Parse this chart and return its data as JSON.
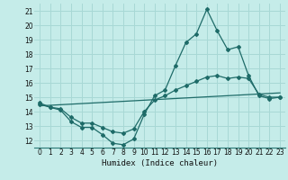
{
  "xlabel": "Humidex (Indice chaleur)",
  "background_color": "#c5ece9",
  "grid_color": "#a8d8d5",
  "line_color": "#1e6b68",
  "xlim": [
    -0.5,
    23.5
  ],
  "ylim": [
    11.5,
    21.5
  ],
  "yticks": [
    12,
    13,
    14,
    15,
    16,
    17,
    18,
    19,
    20,
    21
  ],
  "xticks": [
    0,
    1,
    2,
    3,
    4,
    5,
    6,
    7,
    8,
    9,
    10,
    11,
    12,
    13,
    14,
    15,
    16,
    17,
    18,
    19,
    20,
    21,
    22,
    23
  ],
  "series1_x": [
    0,
    1,
    2,
    3,
    4,
    5,
    6,
    7,
    8,
    9,
    10,
    11,
    12,
    13,
    14,
    15,
    16,
    17,
    18,
    19,
    20,
    21,
    22,
    23
  ],
  "series1_y": [
    14.6,
    14.3,
    14.1,
    13.3,
    12.9,
    12.9,
    12.4,
    11.8,
    11.7,
    12.1,
    13.8,
    15.1,
    15.5,
    17.2,
    18.8,
    19.4,
    21.1,
    19.6,
    18.3,
    18.5,
    16.5,
    15.1,
    14.9,
    15.0
  ],
  "series2_x": [
    0,
    1,
    2,
    3,
    4,
    5,
    6,
    7,
    8,
    9,
    10,
    11,
    12,
    13,
    14,
    15,
    16,
    17,
    18,
    19,
    20,
    21,
    22,
    23
  ],
  "series2_y": [
    14.5,
    14.3,
    14.2,
    13.6,
    13.2,
    13.2,
    12.9,
    12.6,
    12.5,
    12.8,
    14.0,
    14.8,
    15.1,
    15.5,
    15.8,
    16.1,
    16.4,
    16.5,
    16.3,
    16.4,
    16.3,
    15.2,
    15.0,
    15.0
  ],
  "series3_x": [
    0,
    23
  ],
  "series3_y": [
    14.4,
    15.3
  ]
}
